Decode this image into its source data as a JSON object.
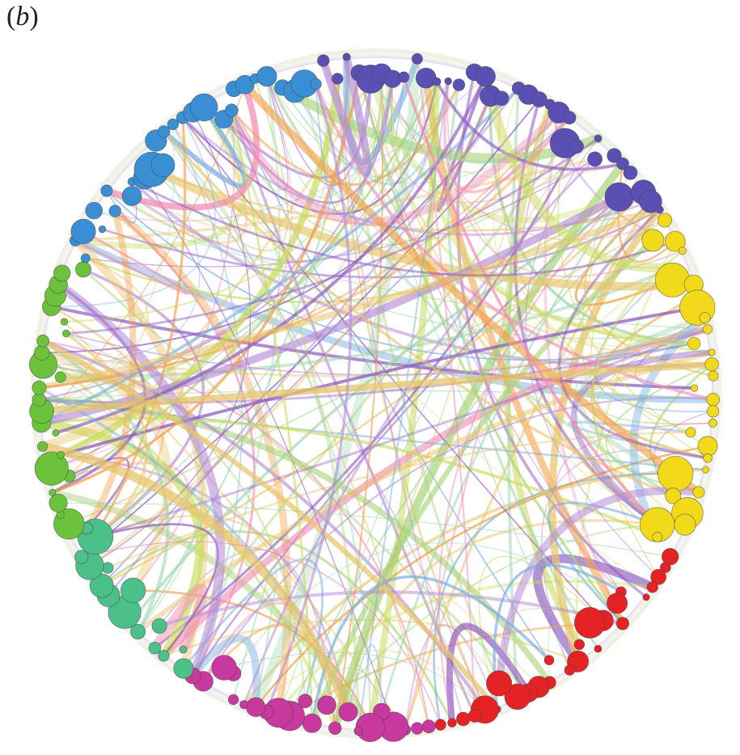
{
  "panel_label": {
    "open": "(",
    "letter": "b",
    "close": ")"
  },
  "network": {
    "layout": "circular",
    "seed": 17,
    "groups": [
      {
        "name": "blue-violet",
        "color": "#5a4fb3",
        "node_count": 34
      },
      {
        "name": "yellow",
        "color": "#f2d91a",
        "node_count": 30
      },
      {
        "name": "red",
        "color": "#e52224",
        "node_count": 26
      },
      {
        "name": "magenta",
        "color": "#c7399e",
        "node_count": 22
      },
      {
        "name": "teal",
        "color": "#4cc08a",
        "node_count": 16
      },
      {
        "name": "green",
        "color": "#6cc23a",
        "node_count": 24
      },
      {
        "name": "sky-blue",
        "color": "#3a8fd4",
        "node_count": 28
      }
    ],
    "edge_colors": [
      "#8e5cc0",
      "#b48ad6",
      "#c9dc5c",
      "#a8d47a",
      "#7aaee0",
      "#f4a04a",
      "#f28db4",
      "#e8c46a",
      "#9fd6b0"
    ],
    "edge_count": 260,
    "node_outline_color": "#444444"
  }
}
